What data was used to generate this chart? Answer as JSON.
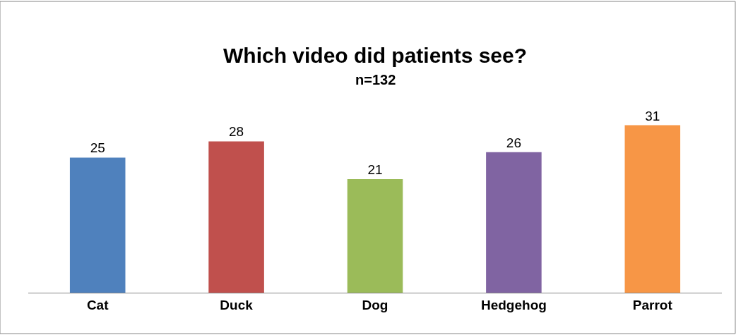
{
  "chart_data": {
    "type": "bar",
    "title": "Which video did patients see?",
    "subtitle": "n=132",
    "categories": [
      "Cat",
      "Duck",
      "Dog",
      "Hedgehog",
      "Parrot"
    ],
    "values": [
      25,
      28,
      21,
      26,
      31
    ],
    "colors": [
      "#4f81bd",
      "#c0504d",
      "#9bbb59",
      "#8064a2",
      "#f79646"
    ],
    "data_labels": true
  }
}
